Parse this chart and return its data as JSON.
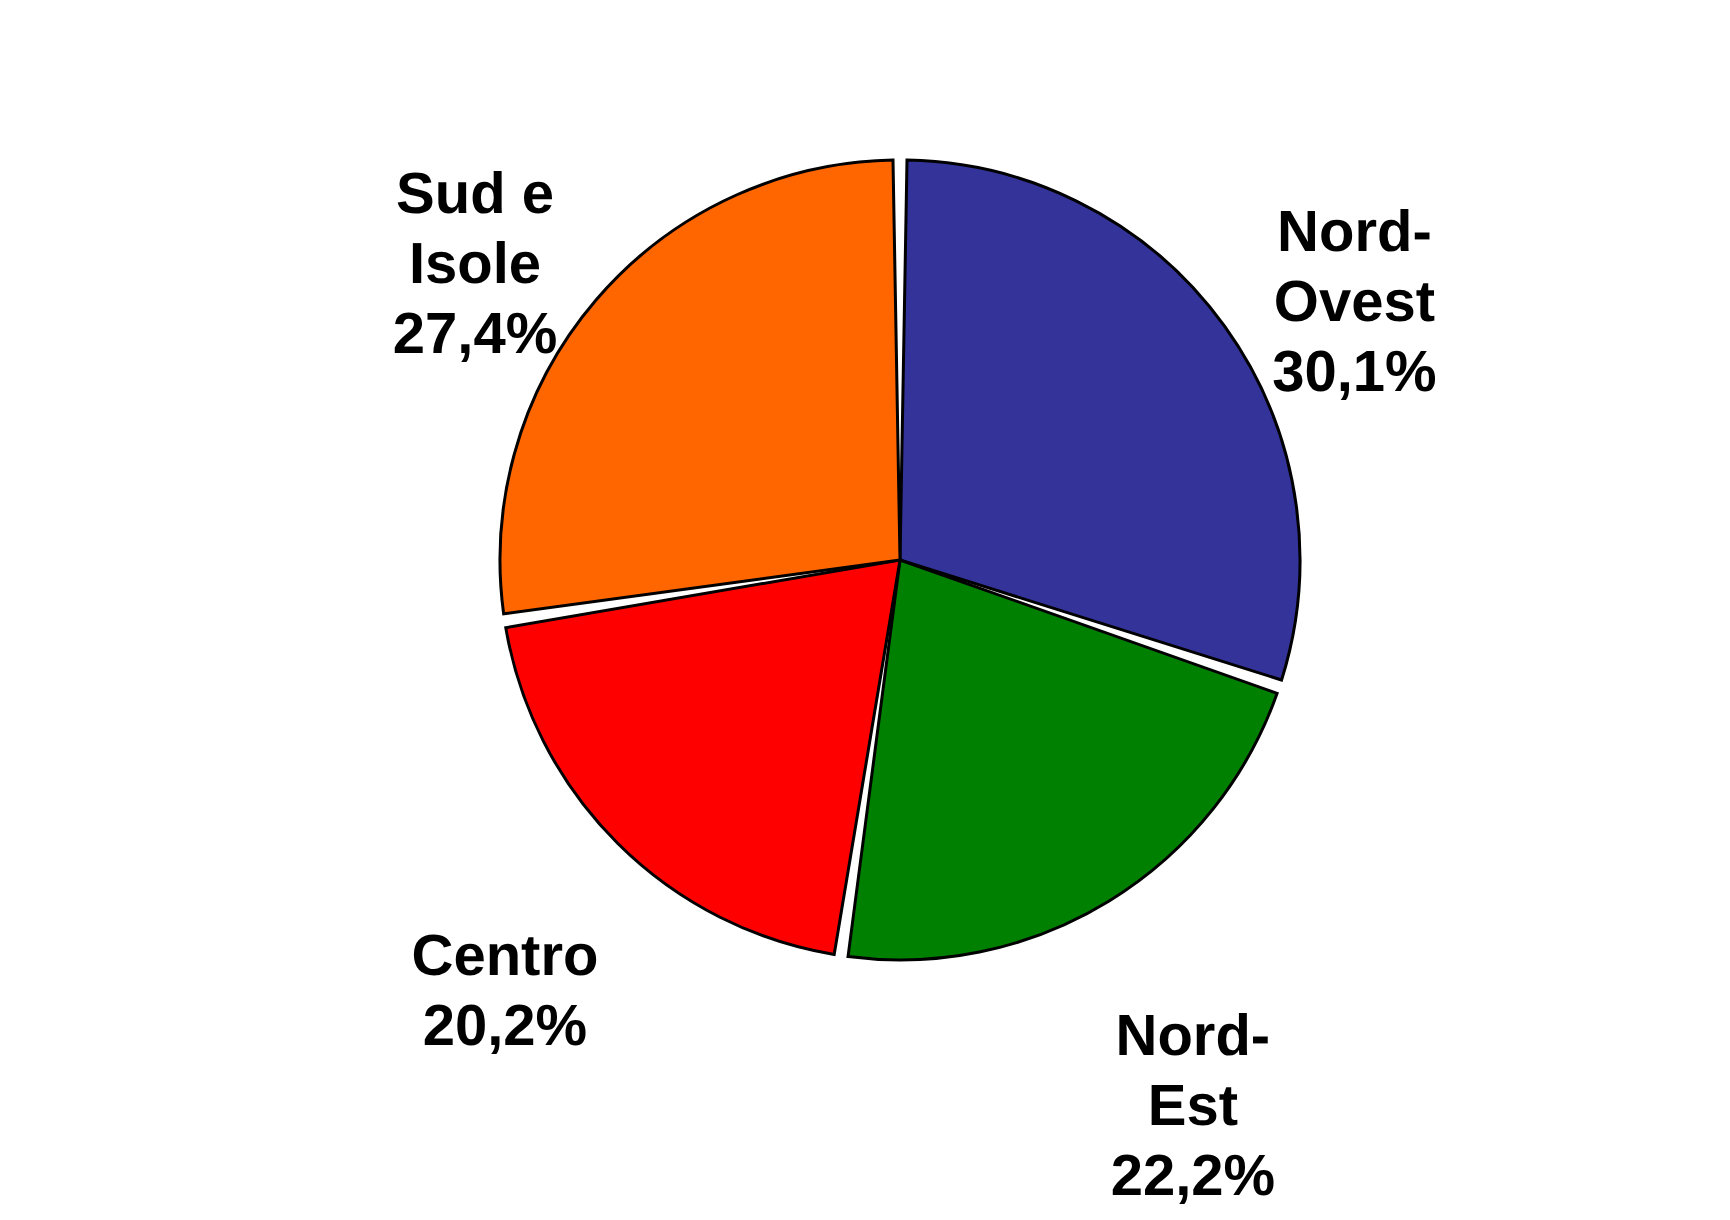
{
  "chart_data": {
    "type": "pie",
    "categories": [
      "Nord-Ovest",
      "Nord-Est",
      "Centro",
      "Sud e Isole"
    ],
    "values": [
      30.1,
      22.2,
      20.2,
      27.4
    ],
    "value_labels": [
      "30,1%",
      "22,2%",
      "20,2%",
      "27,4%"
    ],
    "colors": [
      "#333399",
      "#008000",
      "#ff0000",
      "#ff6600"
    ]
  }
}
